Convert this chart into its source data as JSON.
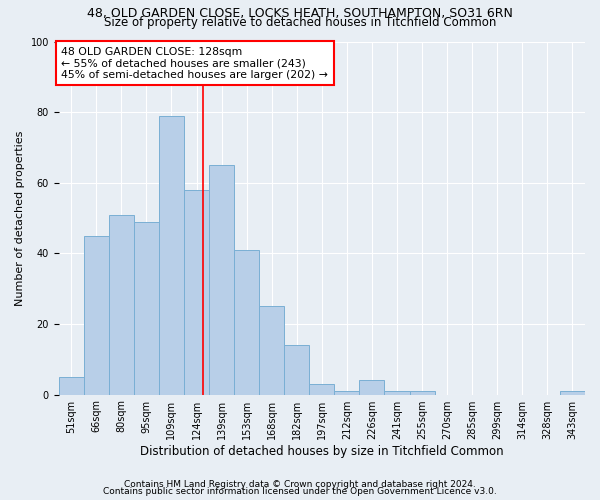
{
  "title1": "48, OLD GARDEN CLOSE, LOCKS HEATH, SOUTHAMPTON, SO31 6RN",
  "title2": "Size of property relative to detached houses in Titchfield Common",
  "xlabel": "Distribution of detached houses by size in Titchfield Common",
  "ylabel": "Number of detached properties",
  "footnote1": "Contains HM Land Registry data © Crown copyright and database right 2024.",
  "footnote2": "Contains public sector information licensed under the Open Government Licence v3.0.",
  "categories": [
    "51sqm",
    "66sqm",
    "80sqm",
    "95sqm",
    "109sqm",
    "124sqm",
    "139sqm",
    "153sqm",
    "168sqm",
    "182sqm",
    "197sqm",
    "212sqm",
    "226sqm",
    "241sqm",
    "255sqm",
    "270sqm",
    "285sqm",
    "299sqm",
    "314sqm",
    "328sqm",
    "343sqm"
  ],
  "values": [
    5,
    45,
    51,
    49,
    79,
    58,
    65,
    41,
    25,
    14,
    3,
    1,
    4,
    1,
    1,
    0,
    0,
    0,
    0,
    0,
    1
  ],
  "bar_color": "#b8cfe8",
  "bar_edge_color": "#7aafd4",
  "bar_linewidth": 0.7,
  "annotation_box_text": "48 OLD GARDEN CLOSE: 128sqm\n← 55% of detached houses are smaller (243)\n45% of semi-detached houses are larger (202) →",
  "red_line_x": 5.27,
  "ylim": [
    0,
    100
  ],
  "xlim_left": -0.5,
  "xlim_right": 20.5,
  "background_color": "#e8eef4",
  "grid_color": "#ffffff",
  "title1_fontsize": 9,
  "title2_fontsize": 8.5,
  "xlabel_fontsize": 8.5,
  "ylabel_fontsize": 8,
  "tick_fontsize": 7,
  "annotation_fontsize": 7.8,
  "footnote_fontsize": 6.5
}
